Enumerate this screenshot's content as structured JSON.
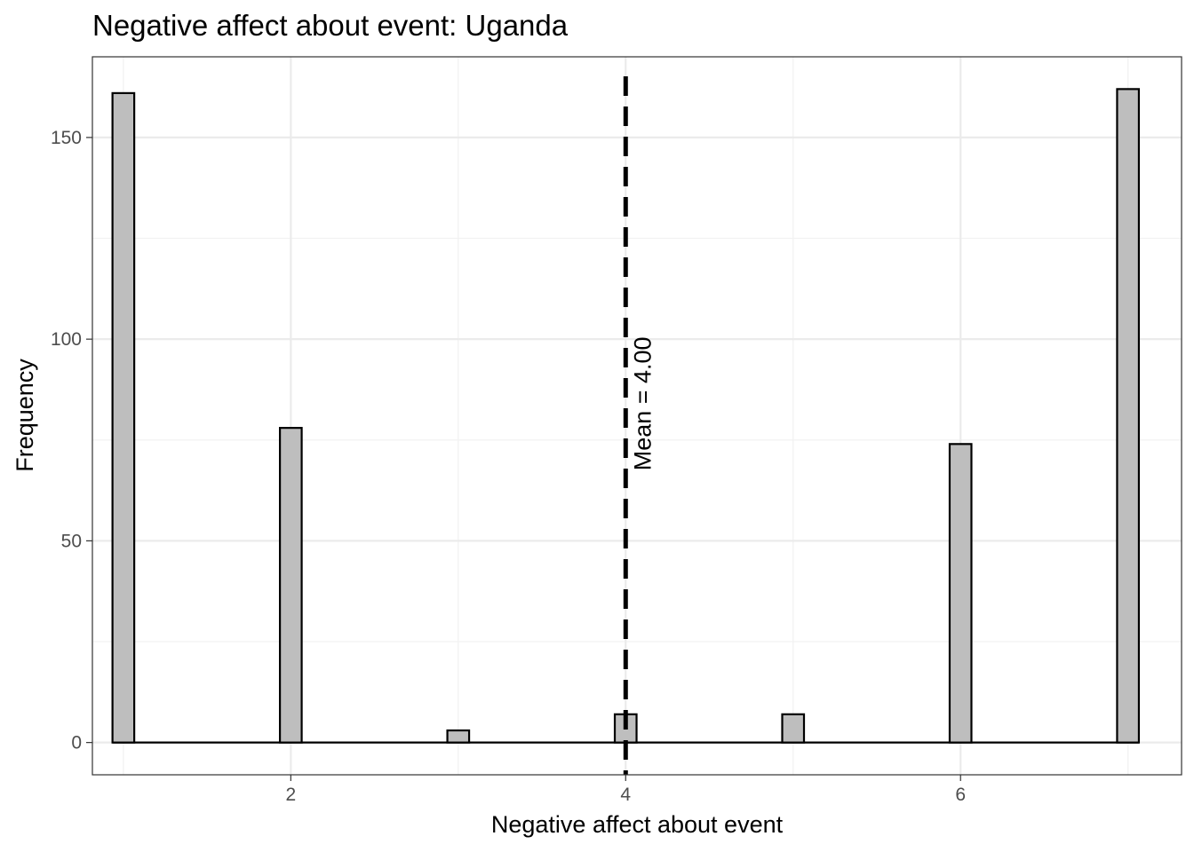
{
  "chart_data": {
    "type": "bar",
    "title": "Negative affect about event: Uganda",
    "xlabel": "Negative affect about event",
    "ylabel": "Frequency",
    "x": [
      1,
      2,
      3,
      4,
      5,
      6,
      7
    ],
    "values": [
      161,
      78,
      3,
      7,
      7,
      74,
      162
    ],
    "xlim": [
      0.815,
      7.32
    ],
    "ylim": [
      -8,
      170
    ],
    "x_ticks": [
      2,
      4,
      6
    ],
    "y_ticks": [
      0,
      50,
      100,
      150
    ],
    "x_tick_labels": [
      "2",
      "4",
      "6"
    ],
    "y_tick_labels": [
      "0",
      "50",
      "100",
      "150"
    ],
    "mean": 4.0,
    "mean_label": "Mean = 4.00",
    "grid": true,
    "colors": {
      "bar_fill": "#bebebe",
      "bar_stroke": "#000000",
      "grid_major": "#ebebeb",
      "grid_minor": "#f2f2f2",
      "mean_line": "#000000"
    }
  }
}
